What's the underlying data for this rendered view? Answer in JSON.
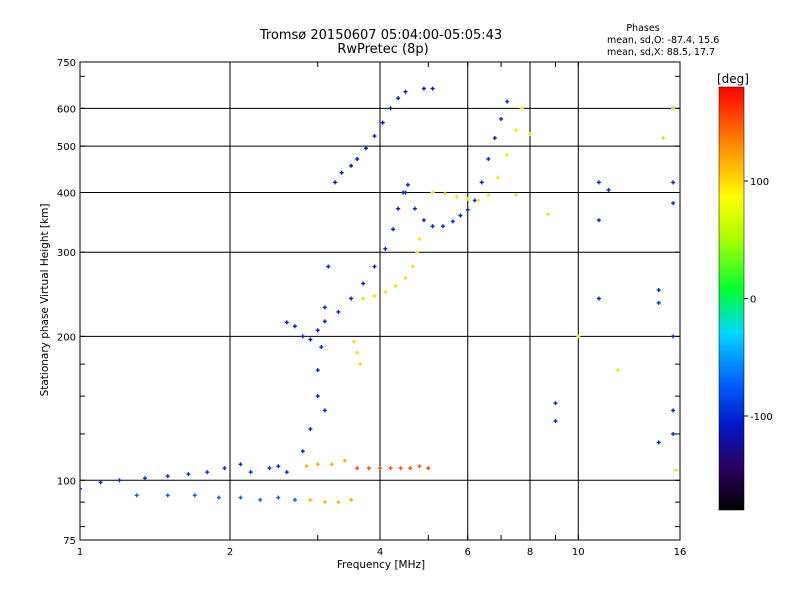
{
  "chart_data": {
    "type": "scatter",
    "title": "Tromsø 20150607 05:04:00-05:05:43",
    "subtitle": "RwPretec (8p)",
    "xlabel": "Frequency [MHz]",
    "ylabel": "Stationary phase Virtual Height [km]",
    "x_scale": "log",
    "y_scale": "log",
    "xlim": [
      1,
      16
    ],
    "ylim": [
      75,
      750
    ],
    "x_ticks": [
      1,
      2,
      4,
      6,
      8,
      10,
      16
    ],
    "x_tick_labels": [
      "1",
      "2",
      "4",
      "6",
      "8",
      "10",
      "16"
    ],
    "y_ticks": [
      75,
      100,
      200,
      300,
      400,
      500,
      600,
      750
    ],
    "y_tick_labels": [
      "75",
      "100",
      "200",
      "300",
      "400",
      "500",
      "600",
      "750"
    ],
    "grid": true,
    "stats": {
      "heading": "Phases",
      "line_o": "mean, sd,O: -87.4, 15.6",
      "line_x": "mean, sd,X:  88.5, 17.7"
    },
    "colorbar": {
      "label": "[deg]",
      "range": [
        -180,
        180
      ],
      "ticks": [
        100,
        0,
        -100
      ],
      "tick_labels": [
        "100",
        "0",
        "-100"
      ]
    },
    "series": [
      {
        "name": "",
        "phase": -95,
        "points": [
          [
            1.0,
            96
          ],
          [
            1.1,
            99
          ],
          [
            1.2,
            100
          ],
          [
            1.35,
            101
          ],
          [
            1.5,
            102
          ],
          [
            1.65,
            103
          ],
          [
            1.8,
            104
          ],
          [
            1.95,
            106
          ],
          [
            2.1,
            108
          ],
          [
            2.2,
            104
          ],
          [
            2.4,
            106
          ],
          [
            2.5,
            107
          ],
          [
            2.6,
            104
          ]
        ]
      },
      {
        "name": "",
        "phase": -105,
        "points": [
          [
            2.6,
            214
          ],
          [
            2.7,
            210
          ],
          [
            2.8,
            200
          ],
          [
            2.9,
            197
          ],
          [
            3.0,
            206
          ],
          [
            3.1,
            215
          ],
          [
            3.3,
            225
          ],
          [
            3.5,
            240
          ],
          [
            3.7,
            258
          ],
          [
            3.9,
            280
          ],
          [
            4.1,
            305
          ],
          [
            4.25,
            335
          ],
          [
            4.35,
            370
          ],
          [
            4.45,
            400
          ],
          [
            4.55,
            415
          ]
        ]
      },
      {
        "name": "",
        "phase": -110,
        "points": [
          [
            3.25,
            420
          ],
          [
            3.35,
            440
          ],
          [
            3.5,
            455
          ],
          [
            3.6,
            470
          ],
          [
            3.75,
            495
          ],
          [
            3.9,
            525
          ],
          [
            4.05,
            560
          ],
          [
            4.2,
            600
          ],
          [
            4.35,
            630
          ],
          [
            4.5,
            650
          ],
          [
            4.9,
            660
          ],
          [
            5.1,
            660
          ]
        ]
      },
      {
        "name": "",
        "phase": -100,
        "points": [
          [
            4.5,
            400
          ],
          [
            4.7,
            370
          ],
          [
            4.9,
            350
          ],
          [
            5.1,
            340
          ],
          [
            5.35,
            340
          ],
          [
            5.6,
            348
          ],
          [
            5.8,
            358
          ],
          [
            6.0,
            368
          ],
          [
            6.2,
            385
          ],
          [
            6.4,
            420
          ],
          [
            6.6,
            470
          ],
          [
            6.8,
            520
          ],
          [
            7.0,
            570
          ],
          [
            7.2,
            620
          ]
        ]
      },
      {
        "name": "",
        "phase": -100,
        "points": [
          [
            3.0,
            170
          ],
          [
            3.05,
            190
          ],
          [
            3.1,
            230
          ],
          [
            3.15,
            280
          ],
          [
            3.0,
            150
          ],
          [
            3.1,
            140
          ],
          [
            2.9,
            128
          ],
          [
            2.8,
            115
          ]
        ]
      },
      {
        "name": "",
        "phase": -70,
        "points": [
          [
            1.3,
            93
          ],
          [
            1.5,
            93
          ],
          [
            1.7,
            93
          ],
          [
            1.9,
            92
          ],
          [
            2.1,
            92
          ],
          [
            2.3,
            91
          ],
          [
            2.5,
            92
          ],
          [
            2.7,
            91
          ]
        ]
      },
      {
        "name": "",
        "phase": 100,
        "points": [
          [
            3.7,
            240
          ],
          [
            3.9,
            243
          ],
          [
            4.1,
            248
          ],
          [
            4.3,
            255
          ],
          [
            4.5,
            265
          ],
          [
            4.65,
            280
          ],
          [
            4.75,
            300
          ],
          [
            4.8,
            320
          ],
          [
            3.55,
            195
          ],
          [
            3.6,
            185
          ],
          [
            3.65,
            175
          ]
        ]
      },
      {
        "name": "",
        "phase": 95,
        "points": [
          [
            5.1,
            400
          ],
          [
            5.4,
            398
          ],
          [
            5.7,
            392
          ],
          [
            6.0,
            388
          ],
          [
            6.3,
            385
          ],
          [
            6.6,
            395
          ],
          [
            6.9,
            430
          ],
          [
            7.2,
            480
          ],
          [
            7.5,
            540
          ],
          [
            7.7,
            600
          ]
        ]
      },
      {
        "name": "",
        "phase": 115,
        "points": [
          [
            2.85,
            107
          ],
          [
            3.0,
            108
          ],
          [
            3.2,
            108
          ],
          [
            3.4,
            110
          ],
          [
            2.9,
            91
          ],
          [
            3.1,
            90
          ],
          [
            3.3,
            90
          ],
          [
            3.5,
            91
          ]
        ]
      },
      {
        "name": "",
        "phase": 150,
        "points": [
          [
            3.6,
            106
          ],
          [
            3.8,
            106
          ],
          [
            4.0,
            106
          ],
          [
            4.2,
            106
          ],
          [
            4.4,
            106
          ],
          [
            4.6,
            106
          ],
          [
            4.8,
            107
          ],
          [
            5.0,
            106
          ]
        ]
      },
      {
        "name": "",
        "phase": -100,
        "points": [
          [
            11.0,
            420
          ],
          [
            11.0,
            350
          ],
          [
            11.5,
            405
          ],
          [
            11.0,
            240
          ],
          [
            9.0,
            145
          ],
          [
            9.0,
            133
          ],
          [
            14.5,
            250
          ],
          [
            14.5,
            235
          ],
          [
            14.5,
            120
          ],
          [
            15.5,
            600
          ],
          [
            15.5,
            420
          ],
          [
            15.5,
            380
          ],
          [
            15.5,
            140
          ],
          [
            15.5,
            125
          ],
          [
            15.5,
            200
          ]
        ]
      },
      {
        "name": "",
        "phase": 60,
        "points": [
          [
            7.5,
            395
          ],
          [
            8.0,
            530
          ],
          [
            8.7,
            360
          ],
          [
            10.0,
            200
          ],
          [
            12.0,
            170
          ],
          [
            15.7,
            105
          ],
          [
            15.5,
            600
          ],
          [
            14.8,
            520
          ]
        ]
      }
    ]
  }
}
